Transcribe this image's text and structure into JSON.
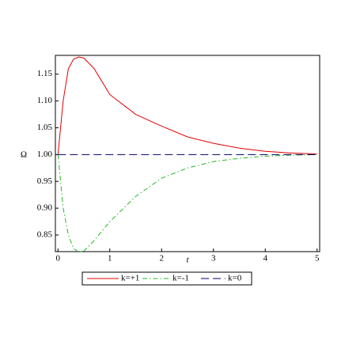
{
  "chart_data": {
    "type": "line",
    "x_label": "t",
    "y_label": "Ω",
    "x": [
      0,
      0.1,
      0.2,
      0.3,
      0.4,
      0.5,
      0.7,
      1.0,
      1.5,
      2.0,
      2.5,
      3.0,
      3.5,
      4.0,
      4.5,
      5.0
    ],
    "series": [
      {
        "name": "k=+1",
        "color": "#e00000",
        "dash": "solid",
        "values": [
          1.0,
          1.1,
          1.16,
          1.178,
          1.182,
          1.18,
          1.16,
          1.112,
          1.075,
          1.053,
          1.033,
          1.021,
          1.012,
          1.006,
          1.003,
          1.001
        ]
      },
      {
        "name": "k=-1",
        "color": "#22bb22",
        "dash": "dashdot",
        "values": [
          1.0,
          0.9,
          0.85,
          0.825,
          0.818,
          0.82,
          0.84,
          0.875,
          0.922,
          0.956,
          0.975,
          0.987,
          0.993,
          0.997,
          0.999,
          1.0
        ]
      },
      {
        "name": "k=0",
        "color": "#000060",
        "dash": "dash",
        "values": [
          1,
          1,
          1,
          1,
          1,
          1,
          1,
          1,
          1,
          1,
          1,
          1,
          1,
          1,
          1,
          1
        ]
      }
    ],
    "xlim": [
      -0.05,
      5.05
    ],
    "ylim": [
      0.819,
      1.185
    ],
    "xticks": [
      0,
      1,
      2,
      3,
      4,
      5
    ],
    "yticks": [
      0.85,
      {
        "value": 0.9,
        "label": "0.90"
      },
      0.95,
      {
        "value": 1.0,
        "label": "1.00"
      },
      1.05,
      {
        "value": 1.1,
        "label": "1.10"
      },
      1.15
    ],
    "legend": "bottom"
  }
}
